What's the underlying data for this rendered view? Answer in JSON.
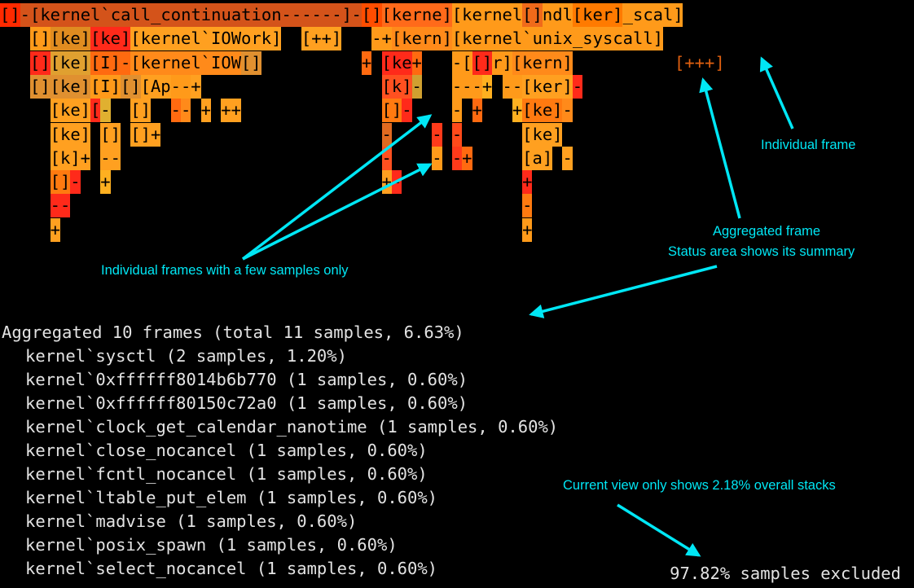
{
  "flame": {
    "rows": [
      [
        [
          "[]",
          "#ff2a00"
        ],
        [
          "-",
          "#d4531a"
        ],
        [
          "[kernel`call_continuation------]",
          "#d4531a"
        ],
        [
          "-",
          "#d4531a"
        ],
        [
          "[]",
          "#ff4d00"
        ],
        [
          "[kerne]",
          "#ff6a1a"
        ],
        [
          "[kernel`hndl_unix_scal]",
          "#ff9a1a"
        ],
        [
          "[]",
          "#f06a1a"
        ],
        [
          "[ker]",
          "#ff7a00"
        ]
      ],
      [
        [
          "[]",
          "#ff9a1a"
        ],
        [
          "[ke]",
          "#e08c20"
        ],
        [
          "[ke]",
          "#ff2a1a"
        ],
        [
          "[kernel`IOWork]",
          "#ffa020"
        ],
        [
          "[++]",
          "#ffa020"
        ],
        [
          "-+",
          "#ff9a1a"
        ],
        [
          "[kern]",
          "#ff8a1a"
        ],
        [
          "[kernel`unix_syscall]",
          "#ff9a1a"
        ]
      ],
      [
        [
          "[]",
          "#ff2a1a"
        ],
        [
          "[ke]",
          "#e0a030"
        ],
        [
          "[I]",
          "#ff6a10"
        ],
        [
          "-",
          "#ff6a10"
        ],
        [
          "[kernel`IOW]",
          "#ff8a1a"
        ],
        [
          "[]",
          "#e09030"
        ],
        [
          "+",
          "#ff6a10"
        ],
        [
          "[ke]",
          "#ff2a1a"
        ],
        [
          "+",
          "#ff6a10"
        ],
        [
          "-",
          "#ff9a1a"
        ],
        [
          "[ker]",
          "#ff9a1a"
        ],
        [
          "[]",
          "#ff2a1a"
        ],
        [
          "[kern]",
          "#ff8a1a"
        ]
      ],
      [
        [
          "[]",
          "#e09030"
        ],
        [
          "[ke]",
          "#e09030"
        ],
        [
          "[I]",
          "#ff9a1a"
        ],
        [
          "[]",
          "#e09030"
        ],
        [
          "[App]",
          "#ffa020"
        ],
        [
          "--",
          "#ff9a1a"
        ],
        [
          "+",
          "#ffa020"
        ],
        [
          "[k]",
          "#ff5020"
        ],
        [
          "-",
          "#d0a030"
        ],
        [
          "---",
          "#ff9a1a"
        ],
        [
          "+",
          "#ffb020"
        ],
        [
          "--",
          "#ff9a1a"
        ],
        [
          "[ker]",
          "#ffa020"
        ],
        [
          "-",
          "#ff2a1a"
        ]
      ],
      [
        [
          "[ke]",
          "#ffa020"
        ],
        [
          "[]",
          "#ff2a1a"
        ],
        [
          "-",
          "#e0b030"
        ],
        [
          "[]",
          "#ffa020"
        ],
        [
          "-",
          "#ff6a10"
        ],
        [
          "-",
          "#ff8a1a"
        ],
        [
          "+",
          "#ffa020"
        ],
        [
          "++",
          "#ffa020"
        ],
        [
          "[]",
          "#ff7a10"
        ],
        [
          "-",
          "#ff2a1a"
        ],
        [
          "-",
          "#ff9a1a"
        ],
        [
          "+",
          "#ff6a10"
        ],
        [
          "+",
          "#ffb020"
        ],
        [
          "[ke]",
          "#ff7a10"
        ],
        [
          "-",
          "#ff8a1a"
        ]
      ],
      [
        [
          "[ke]",
          "#ffa020"
        ],
        [
          "[]",
          "#ffa020"
        ],
        [
          "[]",
          "#ffa020"
        ],
        [
          "+",
          "#ffa020"
        ],
        [
          "-",
          "#e06a20"
        ],
        [
          "-",
          "#ff3a1a"
        ],
        [
          "-",
          "#ff4a1a"
        ],
        [
          "[ke]",
          "#ffa020"
        ]
      ],
      [
        [
          "[k]",
          "#ffa020"
        ],
        [
          "+",
          "#ffa020"
        ],
        [
          "-",
          "#ffa020"
        ],
        [
          "-",
          "#ffa020"
        ],
        [
          "-",
          "#ff5020"
        ],
        [
          "-",
          "#ff9a1a"
        ],
        [
          "-",
          "#ff3a1a"
        ],
        [
          "+",
          "#ff6a10"
        ],
        [
          "[a]",
          "#ffa020"
        ],
        [
          "-",
          "#ffa020"
        ]
      ],
      [
        [
          "[]",
          "#ff7a10"
        ],
        [
          "-",
          "#ff2a1a"
        ],
        [
          "+",
          "#ffb020"
        ],
        [
          "++",
          "#ffa020"
        ],
        [
          "-",
          "#ff2a1a"
        ],
        [
          "+",
          "#ff2a1a"
        ]
      ],
      [
        [
          "--",
          "#ff2a1a"
        ],
        [
          "-",
          "#ff7a10"
        ]
      ],
      [
        [
          "+",
          "#ffa020"
        ],
        [
          "+",
          "#ff9a1a"
        ]
      ]
    ],
    "aggregate_label": "[+++]"
  },
  "annotations": {
    "individual_frame": "Individual frame",
    "few_samples": "Individual frames with a few samples only",
    "aggregated_line1": "Aggregated frame",
    "aggregated_line2": "Status area shows its summary",
    "current_view": "Current view only shows 2.18% overall stacks",
    "accent": "#00e7f5"
  },
  "status": {
    "header": "Aggregated 10 frames (total 11 samples, 6.63%)",
    "items": [
      "kernel`sysctl (2 samples, 1.20%)",
      "kernel`0xffffff8014b6b770 (1 samples, 0.60%)",
      "kernel`0xffffff80150c72a0 (1 samples, 0.60%)",
      "kernel`clock_get_calendar_nanotime (1 samples, 0.60%)",
      "kernel`close_nocancel (1 samples, 0.60%)",
      "kernel`fcntl_nocancel (1 samples, 0.60%)",
      "kernel`ltable_put_elem (1 samples, 0.60%)",
      "kernel`madvise (1 samples, 0.60%)",
      "kernel`posix_spawn (1 samples, 0.60%)",
      "kernel`select_nocancel (1 samples, 0.60%)"
    ],
    "excluded": "97.82% samples excluded"
  }
}
